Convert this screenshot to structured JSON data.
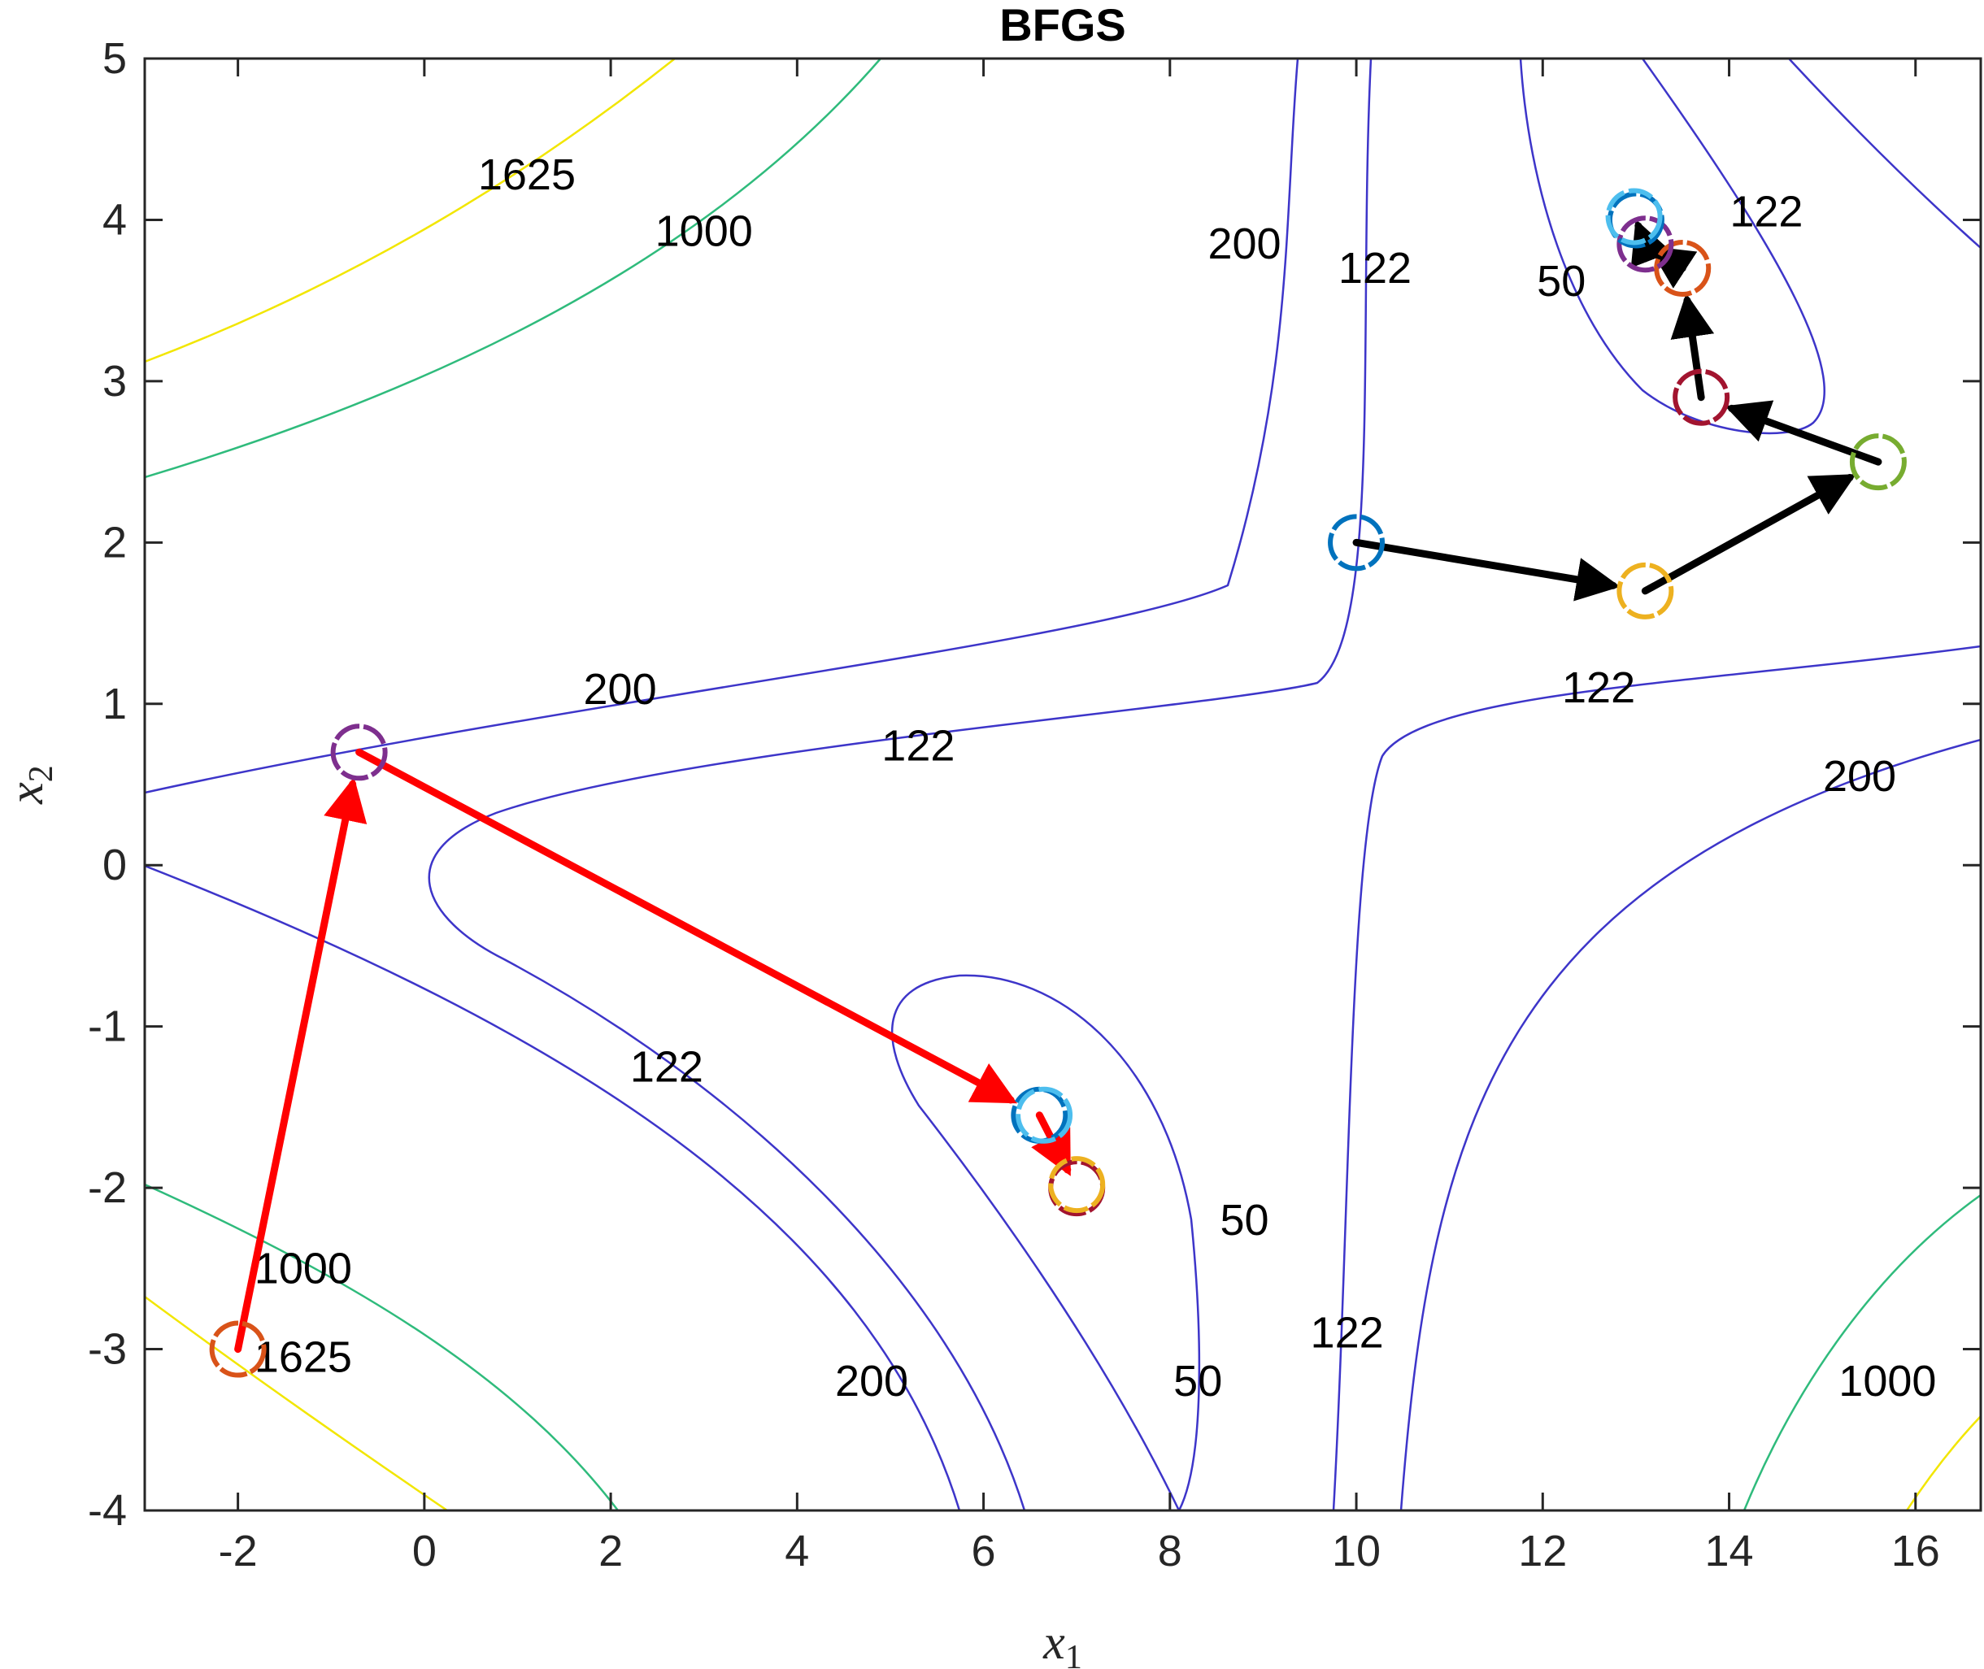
{
  "chart_data": {
    "type": "line",
    "title": "BFGS",
    "xlabel": "x",
    "xlabel_sub": "1",
    "ylabel": "x",
    "ylabel_sub": "2",
    "xlim": [
      -3,
      16.7
    ],
    "ylim": [
      -4,
      5
    ],
    "xticks": [
      -2,
      0,
      2,
      4,
      6,
      8,
      10,
      12,
      14,
      16
    ],
    "yticks": [
      -4,
      -3,
      -2,
      -1,
      0,
      1,
      2,
      3,
      4,
      5
    ],
    "grid": false,
    "contours": [
      {
        "level": "1625",
        "color": "#f2e600",
        "label_at": [
          [
            1.1,
            4.28
          ],
          [
            -1.3,
            -3.05
          ]
        ]
      },
      {
        "level": "1000",
        "color": "#2fbb7c",
        "label_at": [
          [
            3.0,
            3.93
          ],
          [
            -1.3,
            -2.5
          ],
          [
            15.7,
            -3.2
          ]
        ]
      },
      {
        "level": "200",
        "color": "#3d35c9",
        "label_at": [
          [
            2.1,
            1.09
          ],
          [
            8.8,
            3.85
          ],
          [
            15.4,
            0.55
          ],
          [
            4.8,
            -3.2
          ]
        ]
      },
      {
        "level": "122",
        "color": "#3d35c9",
        "label_at": [
          [
            5.3,
            0.74
          ],
          [
            10.2,
            3.7
          ],
          [
            12.6,
            1.1
          ],
          [
            14.4,
            4.05
          ],
          [
            2.6,
            -1.25
          ],
          [
            9.9,
            -2.9
          ]
        ]
      },
      {
        "level": "50",
        "color": "#3d35c9",
        "label_at": [
          [
            12.2,
            3.62
          ],
          [
            8.8,
            -2.2
          ],
          [
            8.3,
            -3.2
          ]
        ]
      }
    ],
    "series": [
      {
        "color": "#ff0000",
        "points": [
          [
            -2.0,
            -3.0
          ],
          [
            -0.7,
            0.7
          ],
          [
            6.6,
            -1.55
          ],
          [
            7.0,
            -2.0
          ]
        ],
        "marker_colors": [
          "#d95319",
          "#7e2f8e",
          "#0072bd",
          "#a2142f"
        ],
        "extra_markers": [
          [
            6.65,
            -1.55,
            "#4dbeee"
          ],
          [
            7.0,
            -1.98,
            "#edb120"
          ]
        ]
      },
      {
        "color": "#000000",
        "points": [
          [
            10.0,
            2.0
          ],
          [
            13.1,
            1.7
          ],
          [
            15.6,
            2.5
          ],
          [
            13.7,
            2.9
          ],
          [
            13.5,
            3.7
          ],
          [
            13.1,
            3.85
          ],
          [
            13.0,
            4.0
          ]
        ],
        "marker_colors": [
          "#0072bd",
          "#edb120",
          "#77ac30",
          "#a2142f",
          "#d95319",
          "#7e2f8e",
          "#0072bd"
        ],
        "extra_markers": [
          [
            12.98,
            4.02,
            "#4dbeee"
          ]
        ]
      }
    ]
  }
}
